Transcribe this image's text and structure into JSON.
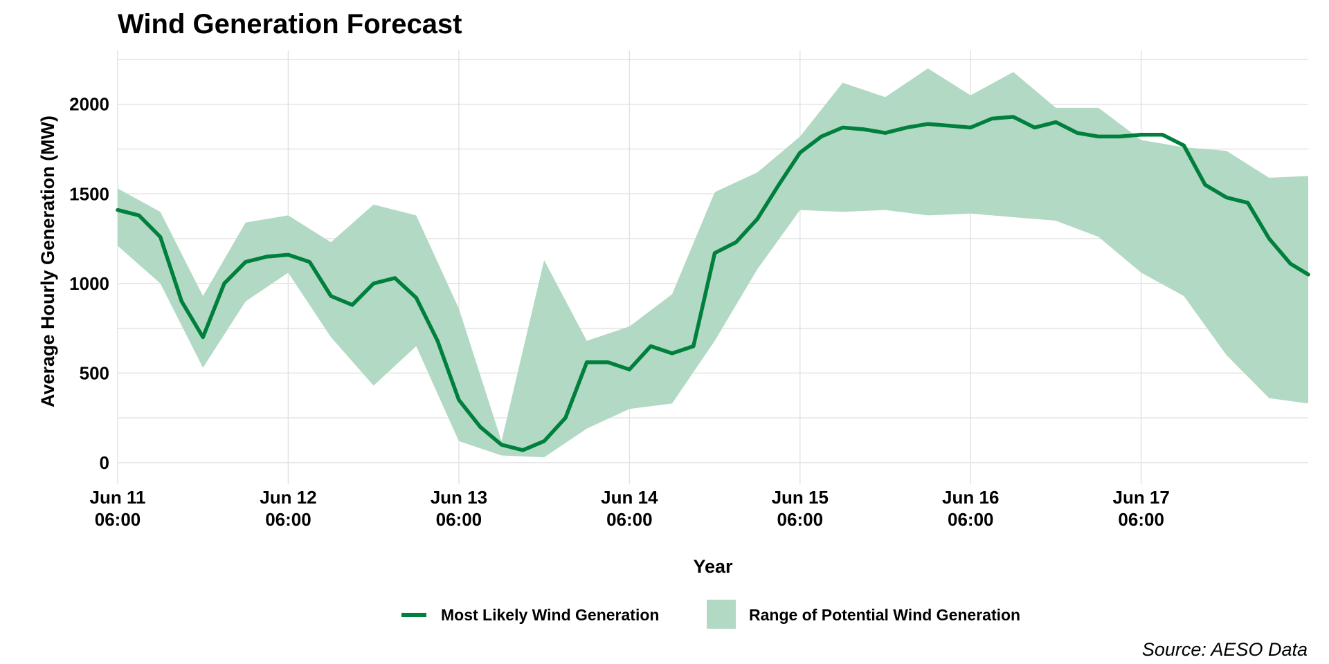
{
  "chart_data": {
    "type": "line",
    "title": "Wind Generation Forecast",
    "xlabel": "Year",
    "ylabel": "Average Hourly Generation (MW)",
    "caption": "Source: AESO Data",
    "ylim": [
      -120,
      2300
    ],
    "xlim": [
      "2025-06-11 06:00",
      "2025-06-18 05:30"
    ],
    "y_ticks": [
      0,
      500,
      1000,
      1500,
      2000
    ],
    "x_ticks": [
      {
        "at": "2025-06-11 06:00",
        "line1": "Jun 11",
        "line2": "06:00"
      },
      {
        "at": "2025-06-12 06:00",
        "line1": "Jun 12",
        "line2": "06:00"
      },
      {
        "at": "2025-06-13 06:00",
        "line1": "Jun 13",
        "line2": "06:00"
      },
      {
        "at": "2025-06-14 06:00",
        "line1": "Jun 14",
        "line2": "06:00"
      },
      {
        "at": "2025-06-15 06:00",
        "line1": "Jun 15",
        "line2": "06:00"
      },
      {
        "at": "2025-06-16 06:00",
        "line1": "Jun 16",
        "line2": "06:00"
      },
      {
        "at": "2025-06-17 06:00",
        "line1": "Jun 17",
        "line2": "06:00"
      }
    ],
    "grid": true,
    "legend_position": "bottom",
    "colors": {
      "line": "#00803c",
      "band": "#b2d9c4"
    },
    "series": [
      {
        "name": "Most Likely Wind Generation",
        "kind": "line",
        "x": [
          "2025-06-11 06:00",
          "2025-06-11 09:00",
          "2025-06-11 12:00",
          "2025-06-11 15:00",
          "2025-06-11 18:00",
          "2025-06-11 21:00",
          "2025-06-12 00:00",
          "2025-06-12 03:00",
          "2025-06-12 06:00",
          "2025-06-12 09:00",
          "2025-06-12 12:00",
          "2025-06-12 15:00",
          "2025-06-12 18:00",
          "2025-06-12 21:00",
          "2025-06-13 00:00",
          "2025-06-13 03:00",
          "2025-06-13 06:00",
          "2025-06-13 09:00",
          "2025-06-13 12:00",
          "2025-06-13 15:00",
          "2025-06-13 18:00",
          "2025-06-13 21:00",
          "2025-06-14 00:00",
          "2025-06-14 03:00",
          "2025-06-14 06:00",
          "2025-06-14 09:00",
          "2025-06-14 12:00",
          "2025-06-14 15:00",
          "2025-06-14 18:00",
          "2025-06-14 21:00",
          "2025-06-15 00:00",
          "2025-06-15 03:00",
          "2025-06-15 06:00",
          "2025-06-15 09:00",
          "2025-06-15 12:00",
          "2025-06-15 15:00",
          "2025-06-15 18:00",
          "2025-06-15 21:00",
          "2025-06-16 00:00",
          "2025-06-16 03:00",
          "2025-06-16 06:00",
          "2025-06-16 09:00",
          "2025-06-16 12:00",
          "2025-06-16 15:00",
          "2025-06-16 18:00",
          "2025-06-16 21:00",
          "2025-06-17 00:00",
          "2025-06-17 03:00",
          "2025-06-17 06:00",
          "2025-06-17 09:00",
          "2025-06-17 12:00",
          "2025-06-17 15:00",
          "2025-06-17 18:00",
          "2025-06-17 21:00",
          "2025-06-18 00:00",
          "2025-06-18 03:00",
          "2025-06-18 05:30"
        ],
        "y": [
          1410,
          1380,
          1260,
          900,
          700,
          1000,
          1120,
          1150,
          1160,
          1120,
          930,
          880,
          1000,
          1030,
          920,
          680,
          350,
          200,
          100,
          70,
          120,
          250,
          560,
          560,
          520,
          650,
          610,
          650,
          1170,
          1230,
          1360,
          1550,
          1730,
          1820,
          1870,
          1860,
          1840,
          1870,
          1890,
          1880,
          1870,
          1920,
          1930,
          1870,
          1900,
          1840,
          1820,
          1820,
          1830,
          1830,
          1770,
          1550,
          1480,
          1450,
          1250,
          1110,
          1050
        ]
      },
      {
        "name": "Range of Potential Wind Generation",
        "kind": "band",
        "x": [
          "2025-06-11 06:00",
          "2025-06-11 12:00",
          "2025-06-11 18:00",
          "2025-06-12 00:00",
          "2025-06-12 06:00",
          "2025-06-12 12:00",
          "2025-06-12 18:00",
          "2025-06-13 00:00",
          "2025-06-13 06:00",
          "2025-06-13 12:00",
          "2025-06-13 18:00",
          "2025-06-14 00:00",
          "2025-06-14 06:00",
          "2025-06-14 12:00",
          "2025-06-14 18:00",
          "2025-06-15 00:00",
          "2025-06-15 06:00",
          "2025-06-15 12:00",
          "2025-06-15 18:00",
          "2025-06-16 00:00",
          "2025-06-16 06:00",
          "2025-06-16 12:00",
          "2025-06-16 18:00",
          "2025-06-17 00:00",
          "2025-06-17 06:00",
          "2025-06-17 12:00",
          "2025-06-17 18:00",
          "2025-06-18 00:00",
          "2025-06-18 05:30"
        ],
        "lower": [
          1210,
          1000,
          530,
          900,
          1060,
          700,
          430,
          650,
          120,
          40,
          30,
          190,
          300,
          330,
          680,
          1080,
          1410,
          1400,
          1410,
          1380,
          1390,
          1370,
          1350,
          1260,
          1060,
          930,
          600,
          360,
          330
        ],
        "upper": [
          1530,
          1400,
          930,
          1340,
          1380,
          1230,
          1440,
          1380,
          860,
          120,
          1130,
          680,
          760,
          940,
          1510,
          1620,
          1820,
          2120,
          2040,
          2200,
          2050,
          2180,
          1980,
          1980,
          1800,
          1760,
          1740,
          1590,
          1600
        ]
      }
    ],
    "legend": [
      {
        "label": "Most Likely Wind Generation",
        "symbol": "line"
      },
      {
        "label": "Range of Potential Wind Generation",
        "symbol": "fill"
      }
    ]
  }
}
